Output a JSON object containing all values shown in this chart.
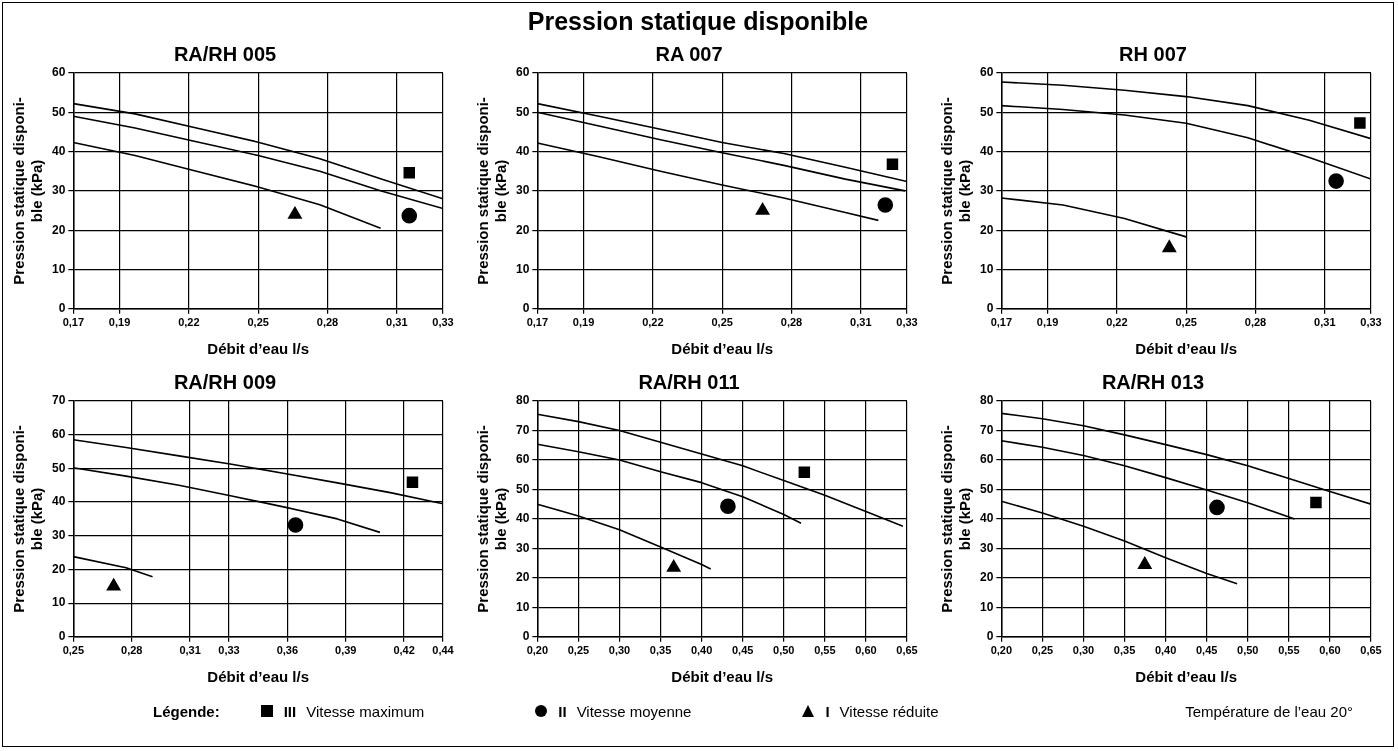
{
  "chart_data": [
    {
      "type": "line",
      "title": "RA/RH 005",
      "annotations": [
        "Pression statique disponible"
      ],
      "xlabel": "Débit d’eau l/s",
      "ylabel": "Pression statique disponi-\nble (kPa)",
      "xlim": [
        0.17,
        0.33
      ],
      "xticks": [
        {
          "value": 0.17,
          "label": "0,17"
        },
        {
          "value": 0.19,
          "label": "0,19"
        },
        {
          "value": 0.22,
          "label": "0,22"
        },
        {
          "value": 0.25,
          "label": "0,25"
        },
        {
          "value": 0.28,
          "label": "0,28"
        },
        {
          "value": 0.31,
          "label": "0,31"
        },
        {
          "value": 0.33,
          "label": "0,33"
        }
      ],
      "ylim": [
        0,
        60
      ],
      "yticks": [
        0,
        10,
        20,
        30,
        40,
        50,
        60
      ],
      "grid": true,
      "series": [
        {
          "color": "#000000",
          "marker": "none",
          "x": [
            0.17,
            0.1967,
            0.2233,
            0.25,
            0.2767,
            0.3033,
            0.33
          ],
          "values": [
            52.2,
            49.6,
            46,
            42.4,
            38.2,
            33,
            28
          ]
        },
        {
          "color": "#000000",
          "marker": "none",
          "x": [
            0.17,
            0.1967,
            0.2233,
            0.25,
            0.2767,
            0.3033,
            0.33
          ],
          "values": [
            49,
            46,
            42.5,
            39,
            35,
            30,
            25.5
          ]
        },
        {
          "color": "#000000",
          "marker": "none",
          "x": [
            0.17,
            0.1967,
            0.2233,
            0.25,
            0.2767,
            0.303
          ],
          "values": [
            42.3,
            39,
            35,
            31,
            26.5,
            20.5
          ]
        },
        {
          "type": "scatter",
          "color": "#000000",
          "marker": "square",
          "x": [
            0.3154
          ],
          "values": [
            34.6
          ]
        },
        {
          "type": "scatter",
          "color": "#000000",
          "marker": "circle",
          "x": [
            0.3154
          ],
          "values": [
            23.7
          ]
        },
        {
          "type": "scatter",
          "color": "#000000",
          "marker": "triangle",
          "x": [
            0.2659
          ],
          "values": [
            24
          ]
        }
      ]
    },
    {
      "type": "line",
      "title": "RA 007",
      "xlabel": "Débit d’eau l/s",
      "ylabel": "Pression statique disponi-\nble (kPa)",
      "xlim": [
        0.17,
        0.33
      ],
      "xticks": [
        {
          "value": 0.17,
          "label": "0,17"
        },
        {
          "value": 0.19,
          "label": "0,19"
        },
        {
          "value": 0.22,
          "label": "0,22"
        },
        {
          "value": 0.25,
          "label": "0,25"
        },
        {
          "value": 0.28,
          "label": "0,28"
        },
        {
          "value": 0.31,
          "label": "0,31"
        },
        {
          "value": 0.33,
          "label": "0,33"
        }
      ],
      "ylim": [
        0,
        60
      ],
      "yticks": [
        0,
        10,
        20,
        30,
        40,
        50,
        60
      ],
      "grid": true,
      "series": [
        {
          "color": "#000000",
          "marker": "none",
          "x": [
            0.17,
            0.1967,
            0.2233,
            0.25,
            0.2767,
            0.3033,
            0.33
          ],
          "values": [
            52.2,
            49,
            45.7,
            42.3,
            39.5,
            36,
            32.4
          ]
        },
        {
          "color": "#000000",
          "marker": "none",
          "x": [
            0.17,
            0.1967,
            0.2233,
            0.25,
            0.2767,
            0.3033,
            0.3292
          ],
          "values": [
            50,
            46.5,
            43,
            39.7,
            36.5,
            33,
            30
          ]
        },
        {
          "color": "#000000",
          "marker": "none",
          "x": [
            0.17,
            0.1967,
            0.2233,
            0.25,
            0.2767,
            0.3033,
            0.3176
          ],
          "values": [
            42.2,
            38.7,
            35,
            31.5,
            28.2,
            24.5,
            22.5
          ]
        },
        {
          "type": "scatter",
          "color": "#000000",
          "marker": "square",
          "x": [
            0.3237
          ],
          "values": [
            36.8
          ]
        },
        {
          "type": "scatter",
          "color": "#000000",
          "marker": "circle",
          "x": [
            0.3206
          ],
          "values": [
            26.4
          ]
        },
        {
          "type": "scatter",
          "color": "#000000",
          "marker": "triangle",
          "x": [
            0.2675
          ],
          "values": [
            25
          ]
        }
      ]
    },
    {
      "type": "line",
      "title": "RH 007",
      "xlabel": "Débit d’eau l/s",
      "ylabel": "Pression statique disponi-\nble (kPa)",
      "xlim": [
        0.17,
        0.33
      ],
      "xticks": [
        {
          "value": 0.17,
          "label": "0,17"
        },
        {
          "value": 0.19,
          "label": "0,19"
        },
        {
          "value": 0.22,
          "label": "0,22"
        },
        {
          "value": 0.25,
          "label": "0,25"
        },
        {
          "value": 0.28,
          "label": "0,28"
        },
        {
          "value": 0.31,
          "label": "0,31"
        },
        {
          "value": 0.33,
          "label": "0,33"
        }
      ],
      "ylim": [
        0,
        60
      ],
      "yticks": [
        0,
        10,
        20,
        30,
        40,
        50,
        60
      ],
      "grid": true,
      "series": [
        {
          "color": "#000000",
          "marker": "none",
          "x": [
            0.17,
            0.1967,
            0.2233,
            0.25,
            0.2767,
            0.3033,
            0.33
          ],
          "values": [
            57.7,
            56.9,
            55.6,
            54,
            51.7,
            48,
            43.3
          ]
        },
        {
          "color": "#000000",
          "marker": "none",
          "x": [
            0.17,
            0.1967,
            0.2233,
            0.25,
            0.2767,
            0.3033,
            0.33
          ],
          "values": [
            51.7,
            50.7,
            49.3,
            47.2,
            43.5,
            38.5,
            33
          ]
        },
        {
          "color": "#000000",
          "marker": "none",
          "x": [
            0.17,
            0.1967,
            0.2233,
            0.25
          ],
          "values": [
            28.2,
            26.4,
            23,
            18.3
          ]
        },
        {
          "type": "scatter",
          "color": "#000000",
          "marker": "square",
          "x": [
            0.3252
          ],
          "values": [
            47.3
          ]
        },
        {
          "type": "scatter",
          "color": "#000000",
          "marker": "circle",
          "x": [
            0.3149
          ],
          "values": [
            32.5
          ]
        },
        {
          "type": "scatter",
          "color": "#000000",
          "marker": "triangle",
          "x": [
            0.2427
          ],
          "values": [
            15.5
          ]
        }
      ]
    },
    {
      "type": "line",
      "title": "RA/RH 009",
      "xlabel": "Débit d’eau l/s",
      "ylabel": "Pression statique disponi-\nble (kPa)",
      "xlim": [
        0.25,
        0.44
      ],
      "xticks": [
        {
          "value": 0.25,
          "label": "0,25"
        },
        {
          "value": 0.28,
          "label": "0,28"
        },
        {
          "value": 0.31,
          "label": "0,31"
        },
        {
          "value": 0.33,
          "label": "0,33"
        },
        {
          "value": 0.36,
          "label": "0,36"
        },
        {
          "value": 0.39,
          "label": "0,39"
        },
        {
          "value": 0.42,
          "label": "0,42"
        },
        {
          "value": 0.44,
          "label": "0,44"
        }
      ],
      "ylim": [
        0,
        70
      ],
      "yticks": [
        0,
        10,
        20,
        30,
        40,
        50,
        60,
        70
      ],
      "grid": true,
      "series": [
        {
          "color": "#000000",
          "marker": "none",
          "x": [
            0.25,
            0.2771,
            0.3043,
            0.3314,
            0.3586,
            0.3857,
            0.4129,
            0.44
          ],
          "values": [
            58.5,
            56.2,
            53.7,
            51.2,
            48.5,
            45.7,
            42.8,
            39.5
          ]
        },
        {
          "color": "#000000",
          "marker": "none",
          "x": [
            0.25,
            0.2771,
            0.3043,
            0.3314,
            0.3586,
            0.3857,
            0.4076
          ],
          "values": [
            50.2,
            47.7,
            45,
            41.8,
            38.5,
            35,
            31
          ]
        },
        {
          "color": "#000000",
          "marker": "none",
          "x": [
            0.25,
            0.2771,
            0.2907
          ],
          "values": [
            23.8,
            20.5,
            17.8
          ]
        },
        {
          "type": "scatter",
          "color": "#000000",
          "marker": "square",
          "x": [
            0.4243
          ],
          "values": [
            45.9
          ]
        },
        {
          "type": "scatter",
          "color": "#000000",
          "marker": "circle",
          "x": [
            0.3642
          ],
          "values": [
            33.2
          ]
        },
        {
          "type": "scatter",
          "color": "#000000",
          "marker": "triangle",
          "x": [
            0.2707
          ],
          "values": [
            15
          ]
        }
      ]
    },
    {
      "type": "line",
      "title": "RA/RH 011",
      "xlabel": "Débit d’eau l/s",
      "ylabel": "Pression statique disponi-\nble (kPa)",
      "xlim": [
        0.2,
        0.65
      ],
      "xticks": [
        {
          "value": 0.2,
          "label": "0,20"
        },
        {
          "value": 0.25,
          "label": "0,25"
        },
        {
          "value": 0.3,
          "label": "0,30"
        },
        {
          "value": 0.35,
          "label": "0,35"
        },
        {
          "value": 0.4,
          "label": "0,40"
        },
        {
          "value": 0.45,
          "label": "0,45"
        },
        {
          "value": 0.5,
          "label": "0,50"
        },
        {
          "value": 0.55,
          "label": "0,55"
        },
        {
          "value": 0.6,
          "label": "0,60"
        },
        {
          "value": 0.65,
          "label": "0,65"
        }
      ],
      "ylim": [
        0,
        80
      ],
      "yticks": [
        0,
        10,
        20,
        30,
        40,
        50,
        60,
        70,
        80
      ],
      "grid": true,
      "series": [
        {
          "color": "#000000",
          "marker": "none",
          "x": [
            0.2,
            0.25,
            0.3,
            0.35,
            0.4,
            0.45,
            0.5,
            0.55,
            0.6,
            0.645
          ],
          "values": [
            75.5,
            73,
            70,
            66,
            62,
            58,
            53,
            48,
            42.5,
            37.5
          ]
        },
        {
          "color": "#000000",
          "marker": "none",
          "x": [
            0.2,
            0.25,
            0.3,
            0.35,
            0.4,
            0.45,
            0.5,
            0.521
          ],
          "values": [
            65.3,
            62.8,
            60,
            56,
            52.3,
            47.5,
            41.5,
            38.5
          ]
        },
        {
          "color": "#000000",
          "marker": "none",
          "x": [
            0.2,
            0.25,
            0.3,
            0.35,
            0.4,
            0.411
          ],
          "values": [
            45,
            41,
            36.3,
            30.5,
            24.5,
            23
          ]
        },
        {
          "type": "scatter",
          "color": "#000000",
          "marker": "square",
          "x": [
            0.525
          ],
          "values": [
            55.8
          ]
        },
        {
          "type": "scatter",
          "color": "#000000",
          "marker": "circle",
          "x": [
            0.432
          ],
          "values": [
            44.3
          ]
        },
        {
          "type": "scatter",
          "color": "#000000",
          "marker": "triangle",
          "x": [
            0.366
          ],
          "values": [
            23.5
          ]
        }
      ]
    },
    {
      "type": "line",
      "title": "RA/RH 013",
      "xlabel": "Débit d’eau l/s",
      "ylabel": "Pression statique disponi-\nble (kPa)",
      "legend": "bottom",
      "legend_title": "Légende:",
      "annotations": [
        "Température de l’eau 20°"
      ],
      "xlim": [
        0.2,
        0.65
      ],
      "xticks": [
        {
          "value": 0.2,
          "label": "0,20"
        },
        {
          "value": 0.25,
          "label": "0,25"
        },
        {
          "value": 0.3,
          "label": "0,30"
        },
        {
          "value": 0.35,
          "label": "0,35"
        },
        {
          "value": 0.4,
          "label": "0,40"
        },
        {
          "value": 0.45,
          "label": "0,45"
        },
        {
          "value": 0.5,
          "label": "0,50"
        },
        {
          "value": 0.55,
          "label": "0,55"
        },
        {
          "value": 0.6,
          "label": "0,60"
        },
        {
          "value": 0.65,
          "label": "0,65"
        }
      ],
      "ylim": [
        0,
        80
      ],
      "yticks": [
        0,
        10,
        20,
        30,
        40,
        50,
        60,
        70,
        80
      ],
      "grid": true,
      "series": [
        {
          "color": "#000000",
          "marker": "none",
          "x": [
            0.2,
            0.25,
            0.3,
            0.35,
            0.4,
            0.45,
            0.5,
            0.55,
            0.6,
            0.65
          ],
          "values": [
            75.8,
            74,
            71.6,
            68.5,
            65.2,
            61.8,
            58,
            53.7,
            49.3,
            45
          ]
        },
        {
          "color": "#000000",
          "marker": "none",
          "x": [
            0.2,
            0.25,
            0.3,
            0.35,
            0.4,
            0.45,
            0.5,
            0.557
          ],
          "values": [
            66.5,
            64.3,
            61.5,
            58,
            54,
            49.8,
            45.5,
            40
          ]
        },
        {
          "color": "#000000",
          "marker": "none",
          "x": [
            0.2,
            0.25,
            0.3,
            0.35,
            0.4,
            0.45,
            0.487
          ],
          "values": [
            46,
            42,
            37.5,
            32.5,
            26.8,
            21.5,
            18
          ]
        },
        {
          "type": "scatter",
          "name": "III Vitesse maximum",
          "color": "#000000",
          "marker": "square",
          "x": [
            0.583
          ],
          "values": [
            45.6
          ]
        },
        {
          "type": "scatter",
          "name": "II Vitesse moyenne",
          "color": "#000000",
          "marker": "circle",
          "x": [
            0.4625
          ],
          "values": [
            43.9
          ]
        },
        {
          "type": "scatter",
          "name": "I Vitesse réduite",
          "color": "#000000",
          "marker": "triangle",
          "x": [
            0.3746
          ],
          "values": [
            24.5
          ]
        }
      ]
    }
  ]
}
